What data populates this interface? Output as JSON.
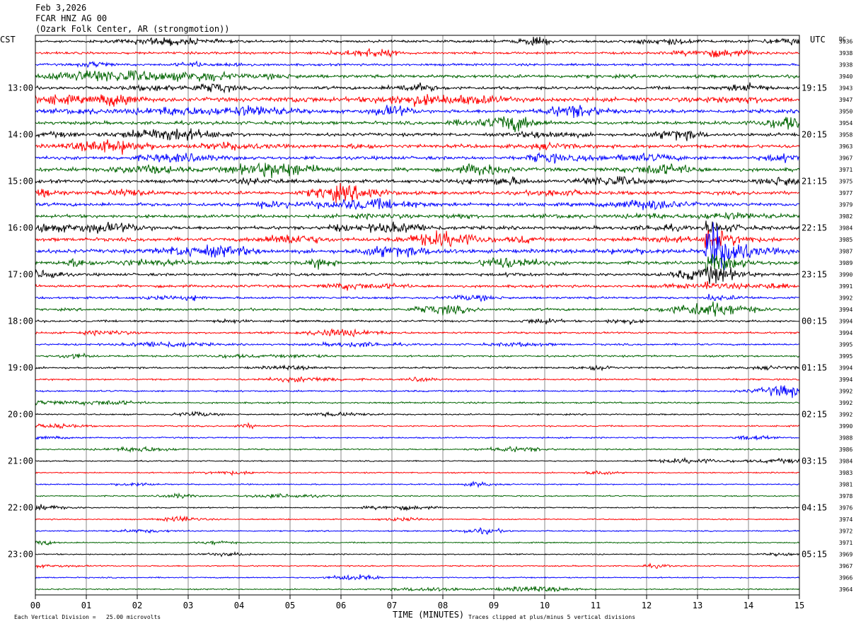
{
  "header": {
    "date": "Feb 3,2026",
    "station": "FCAR HNZ AG 00",
    "location": "(Ozark Folk Center, AR (strongmotion))"
  },
  "chart_data": {
    "type": "line",
    "title": "Feb 3,2026 FCAR HNZ AG 00 (Ozark Folk Center, AR (strongmotion))",
    "xlabel": "TIME (MINUTES)",
    "left_axis_label": "CST",
    "right_axis_label": "UTC",
    "dc_label": "DC",
    "x_ticks": [
      "00",
      "01",
      "02",
      "03",
      "04",
      "05",
      "06",
      "07",
      "08",
      "09",
      "10",
      "11",
      "12",
      "13",
      "14",
      "15"
    ],
    "xlim": [
      0,
      15
    ],
    "left_hour_labels": [
      "13:00",
      "14:00",
      "15:00",
      "16:00",
      "17:00",
      "18:00",
      "19:00",
      "20:00",
      "21:00",
      "22:00",
      "23:00"
    ],
    "right_hour_labels": [
      "19:15",
      "20:15",
      "21:15",
      "22:15",
      "23:15",
      "00:15",
      "01:15",
      "02:15",
      "03:15",
      "04:15",
      "05:15"
    ],
    "hour_label_start_row": 4,
    "rows_per_hour": 4,
    "trace_colors": [
      "#000000",
      "#ff0000",
      "#0000ff",
      "#006400"
    ],
    "dc_offsets": [
      3936,
      3938,
      3938,
      3940,
      3943,
      3947,
      3950,
      3954,
      3958,
      3963,
      3967,
      3971,
      3975,
      3977,
      3979,
      3982,
      3984,
      3985,
      3987,
      3989,
      3990,
      3991,
      3992,
      3994,
      3994,
      3994,
      3995,
      3995,
      3994,
      3994,
      3992,
      3992,
      3992,
      3990,
      3988,
      3986,
      3984,
      3983,
      3981,
      3978,
      3976,
      3974,
      3972,
      3971,
      3969,
      3967,
      3966,
      3964
    ],
    "trace_activity": [
      1.2,
      1.1,
      1.1,
      1.6,
      1.5,
      2.0,
      1.7,
      1.6,
      1.5,
      1.7,
      1.6,
      1.8,
      1.6,
      1.7,
      1.6,
      1.5,
      1.6,
      1.7,
      1.8,
      1.5,
      1.3,
      1.3,
      1.1,
      1.2,
      1.0,
      0.9,
      0.9,
      0.9,
      0.9,
      0.8,
      0.8,
      0.8,
      0.7,
      0.7,
      0.7,
      0.7,
      0.6,
      0.6,
      0.6,
      0.6,
      0.6,
      0.6,
      0.6,
      0.6,
      0.6,
      0.6,
      0.6,
      0.6
    ],
    "event": {
      "row": 18,
      "minute": 13.2,
      "peak_divisions": 5
    },
    "footer_left": "Each Vertical Division =   25.00 microvolts",
    "footer_right": "Traces clipped at plus/minus 5 vertical divisions"
  }
}
